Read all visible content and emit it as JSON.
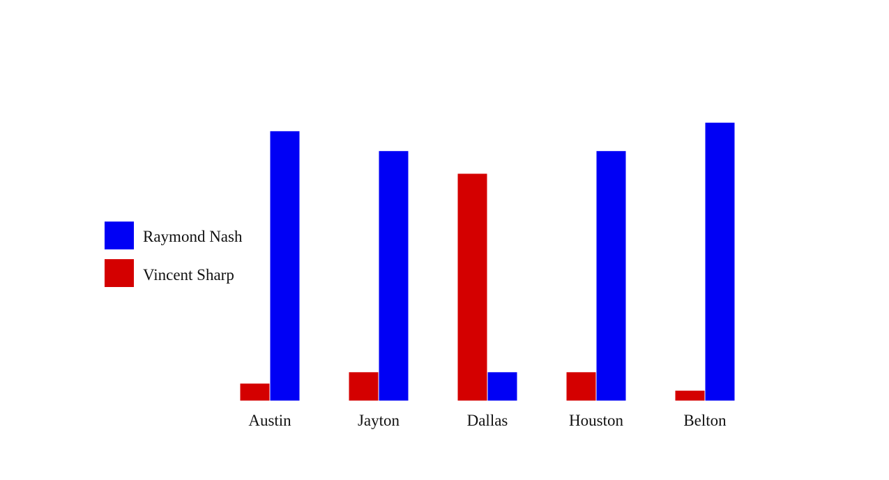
{
  "chart_data": {
    "type": "bar",
    "title": "",
    "xlabel": "",
    "ylabel": "",
    "categories": [
      "Austin",
      "Jayton",
      "Dallas",
      "Houston",
      "Belton"
    ],
    "series": [
      {
        "name": "Vincent Sharp",
        "color": "#d40000",
        "values": [
          6,
          10,
          80,
          10,
          3.5
        ]
      },
      {
        "name": "Raymond Nash",
        "color": "#0000f5",
        "values": [
          95,
          88,
          10,
          88,
          98
        ]
      }
    ],
    "ylim": [
      0,
      100
    ],
    "grid": false,
    "axes_visible": false,
    "legend": {
      "placement": "left",
      "entries": [
        {
          "label": "Raymond Nash",
          "color": "#0000f5"
        },
        {
          "label": "Vincent Sharp",
          "color": "#d40000"
        }
      ]
    }
  }
}
